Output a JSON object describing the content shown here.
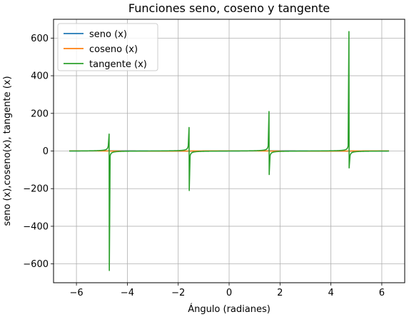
{
  "chart_data": {
    "type": "line",
    "title": "Funciones seno, coseno y tangente",
    "xlabel": "Ángulo (radianes)",
    "ylabel": "seno (x),coseno(x), tangente (x)",
    "xlim": [
      -6.9,
      6.9
    ],
    "ylim": [
      -700,
      700
    ],
    "xticks": [
      -6,
      -4,
      -2,
      0,
      2,
      4,
      6
    ],
    "xtick_labels": [
      "−6",
      "−4",
      "−2",
      "0",
      "2",
      "4",
      "6"
    ],
    "yticks": [
      -600,
      -400,
      -200,
      0,
      200,
      400,
      600
    ],
    "ytick_labels": [
      "−600",
      "−400",
      "−200",
      "0",
      "200",
      "400",
      "600"
    ],
    "grid": true,
    "legend_position": "top-left",
    "x_range": [
      -6.2832,
      6.2832
    ],
    "series": [
      {
        "name": "seno (x)",
        "function": "sin",
        "color": "#1f77b4"
      },
      {
        "name": "coseno (x)",
        "function": "cos",
        "color": "#ff7f0e"
      },
      {
        "name": "tangente (x)",
        "function": "tan",
        "color": "#2ca02c",
        "spikes": [
          {
            "x": -4.712,
            "left_peak": 90,
            "right_peak": -635
          },
          {
            "x": -1.571,
            "left_peak": 125,
            "right_peak": -210
          },
          {
            "x": 1.571,
            "left_peak": 210,
            "right_peak": -125
          },
          {
            "x": 4.712,
            "left_peak": 635,
            "right_peak": -90
          }
        ]
      }
    ]
  }
}
